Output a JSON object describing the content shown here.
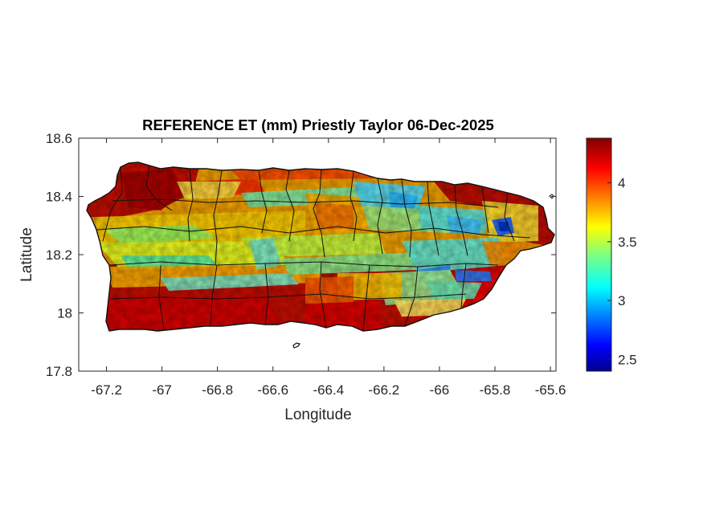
{
  "title": "REFERENCE ET (mm) Priestly Taylor 06-Dec-2025",
  "xlabel": "Longitude",
  "ylabel": "Latitude",
  "x_ticks": [
    -67.2,
    -67,
    -66.8,
    -66.6,
    -66.4,
    -66.2,
    -66,
    -65.8,
    -65.6
  ],
  "x_tick_labels": [
    "-67.2",
    "-67",
    "-66.8",
    "-66.6",
    "-66.4",
    "-66.2",
    "-66",
    "-65.8",
    "-65.6"
  ],
  "y_ticks": [
    17.8,
    18,
    18.2,
    18.4,
    18.6
  ],
  "y_tick_labels": [
    "17.8",
    "18",
    "18.2",
    "18.4",
    "18.6"
  ],
  "xlim": [
    -67.3,
    -65.58
  ],
  "ylim": [
    17.8,
    18.6
  ],
  "colorbar": {
    "colormap": "jet",
    "min": 2.4,
    "max": 4.38,
    "ticks": [
      2.5,
      3,
      3.5,
      4
    ],
    "tick_labels": [
      "2.5",
      "3",
      "3.5",
      "4"
    ]
  }
}
